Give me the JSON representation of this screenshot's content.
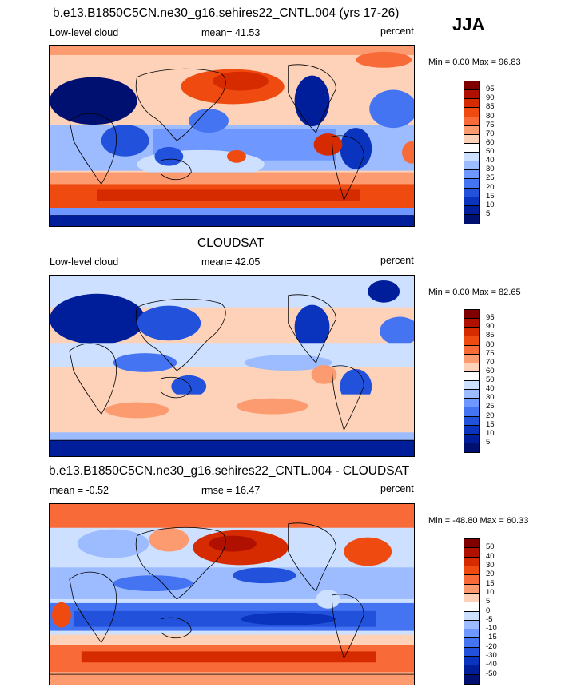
{
  "season": "JJA",
  "panels": [
    {
      "id": "model",
      "title": "b.e13.B1850C5CN.ne30_g16.sehires22_CNTL.004 (yrs 17-26)",
      "left_label": "Low-level cloud",
      "center_label": "mean=  41.53",
      "right_label": "percent",
      "minmax": "Min =   0.00 Max =  96.83",
      "levels": [
        "95",
        "90",
        "85",
        "80",
        "75",
        "70",
        "60",
        "50",
        "40",
        "30",
        "25",
        "20",
        "15",
        "10",
        "5"
      ],
      "palette": [
        "#800000",
        "#b01000",
        "#d62a00",
        "#ef4a10",
        "#f86a38",
        "#fc9a70",
        "#fdd2b8",
        "#ffffff",
        "#cde0ff",
        "#9cbcff",
        "#6e98ff",
        "#4474f2",
        "#2252dc",
        "#0a34be",
        "#001e9a",
        "#001070"
      ]
    },
    {
      "id": "obs",
      "title": "CLOUDSAT",
      "left_label": "Low-level cloud",
      "center_label": "mean=  42.05",
      "right_label": "percent",
      "minmax": "Min =   0.00 Max =  82.65",
      "levels": [
        "95",
        "90",
        "85",
        "80",
        "75",
        "70",
        "60",
        "50",
        "40",
        "30",
        "25",
        "20",
        "15",
        "10",
        "5"
      ],
      "palette": [
        "#800000",
        "#b01000",
        "#d62a00",
        "#ef4a10",
        "#f86a38",
        "#fc9a70",
        "#fdd2b8",
        "#ffffff",
        "#cde0ff",
        "#9cbcff",
        "#6e98ff",
        "#4474f2",
        "#2252dc",
        "#0a34be",
        "#001e9a",
        "#001070"
      ]
    },
    {
      "id": "diff",
      "title": "b.e13.B1850C5CN.ne30_g16.sehires22_CNTL.004 - CLOUDSAT",
      "left_label": "mean =  -0.52",
      "center_label": "rmse =  16.47",
      "right_label": "percent",
      "minmax": "Min = -48.80 Max =  60.33",
      "levels": [
        "50",
        "40",
        "30",
        "20",
        "15",
        "10",
        "5",
        "0",
        "-5",
        "-10",
        "-15",
        "-20",
        "-30",
        "-40",
        "-50"
      ],
      "palette": [
        "#800000",
        "#b01000",
        "#d62a00",
        "#ef4a10",
        "#f86a38",
        "#fc9a70",
        "#fdd2b8",
        "#ffffff",
        "#cde0ff",
        "#9cbcff",
        "#6e98ff",
        "#4474f2",
        "#2252dc",
        "#0a34be",
        "#001e9a",
        "#001070"
      ]
    }
  ]
}
